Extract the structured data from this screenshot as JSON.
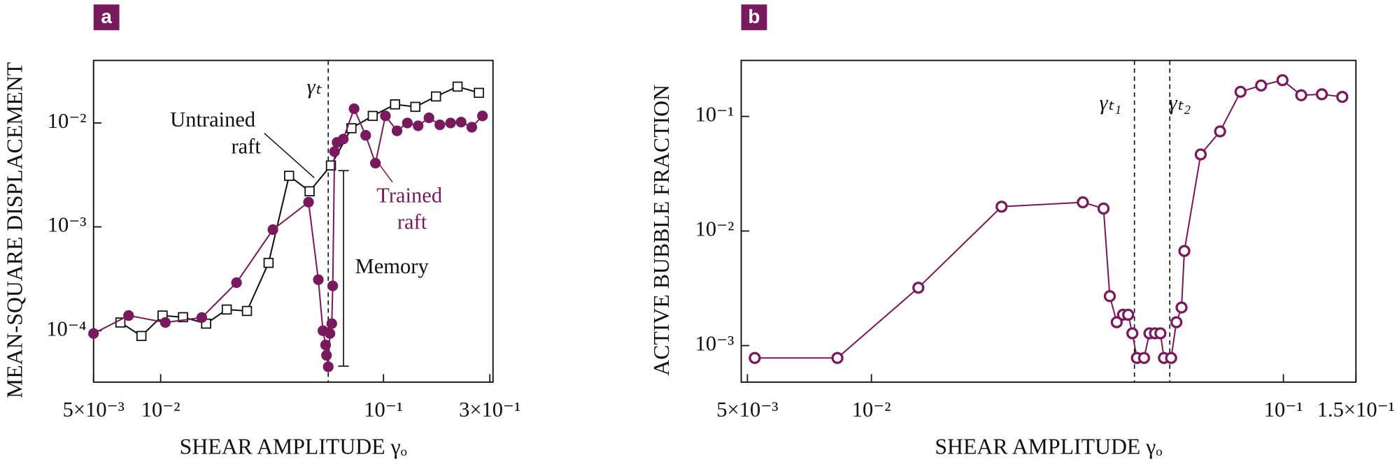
{
  "chart_data": [
    {
      "type": "line",
      "panel_label": "a",
      "xlabel": "SHEAR AMPLITUDE γₒ",
      "ylabel": "MEAN-SQUARE DISPLACEMENT",
      "xscale": "log",
      "yscale": "log",
      "xlim": [
        0.005,
        0.31
      ],
      "ylim": [
        3.2e-05,
        0.04
      ],
      "xticks": [
        {
          "value": 0.005,
          "label": "5×10⁻³"
        },
        {
          "value": 0.01,
          "label": "10⁻²"
        },
        {
          "value": 0.1,
          "label": "10⁻¹"
        },
        {
          "value": 0.3,
          "label": "3×10⁻¹"
        }
      ],
      "yticks": [
        {
          "value": 0.0001,
          "label": "10⁻⁴"
        },
        {
          "value": 0.001,
          "label": "10⁻³"
        },
        {
          "value": 0.01,
          "label": "10⁻²"
        }
      ],
      "vlines": [
        {
          "value": 0.0565,
          "label": "γₜ"
        }
      ],
      "annotation": "Memory",
      "series": [
        {
          "name": "Untrained raft",
          "color": "#111111",
          "marker": "square",
          "filled": false,
          "x": [
            0.0066,
            0.0082,
            0.0102,
            0.0126,
            0.016,
            0.0198,
            0.0244,
            0.0305,
            0.0377,
            0.0466,
            0.0581,
            0.0718,
            0.0895,
            0.1127,
            0.139,
            0.172,
            0.215,
            0.268
          ],
          "values": [
            0.00012,
            8.9e-05,
            0.00014,
            0.000135,
            0.000117,
            0.00016,
            0.000155,
            0.00045,
            0.0031,
            0.0022,
            0.0039,
            0.0089,
            0.0117,
            0.0151,
            0.0143,
            0.018,
            0.0224,
            0.0195
          ]
        },
        {
          "name": "Trained raft",
          "color": "#7a1a5e",
          "marker": "circle",
          "filled": true,
          "x": [
            0.005,
            0.00718,
            0.0105,
            0.0153,
            0.0219,
            0.0319,
            0.0461,
            0.051,
            0.0535,
            0.055,
            0.0555,
            0.0565,
            0.0575,
            0.0586,
            0.0592,
            0.0603,
            0.0619,
            0.066,
            0.0738,
            0.0832,
            0.092,
            0.102,
            0.115,
            0.128,
            0.143,
            0.16,
            0.179,
            0.2,
            0.223,
            0.249,
            0.278
          ],
          "values": [
            9.4e-05,
            0.00014,
            0.00012,
            0.000134,
            0.00029,
            0.00094,
            0.00173,
            0.00031,
            0.0001,
            7.3e-05,
            5.8e-05,
            4.5e-05,
            9.4e-05,
            0.000117,
            0.00027,
            0.0053,
            0.0065,
            0.007,
            0.0137,
            0.0076,
            0.0041,
            0.0117,
            0.0084,
            0.01,
            0.0094,
            0.0112,
            0.0096,
            0.01,
            0.0102,
            0.0091,
            0.0117
          ]
        }
      ]
    },
    {
      "type": "line",
      "panel_label": "b",
      "xlabel": "SHEAR AMPLITUDE γₒ",
      "ylabel": "ACTIVE BUBBLE FRACTION",
      "xscale": "log",
      "yscale": "log",
      "xlim": [
        0.00483,
        0.15
      ],
      "ylim": [
        0.00048,
        0.308
      ],
      "xticks": [
        {
          "value": 0.005,
          "label": "5×10⁻³"
        },
        {
          "value": 0.01,
          "label": "10⁻²"
        },
        {
          "value": 0.1,
          "label": "10⁻¹"
        },
        {
          "value": 0.15,
          "label": "1.5×10⁻¹"
        }
      ],
      "yticks": [
        {
          "value": 0.001,
          "label": "10⁻³"
        },
        {
          "value": 0.01,
          "label": "10⁻²"
        },
        {
          "value": 0.1,
          "label": "10⁻¹"
        }
      ],
      "vlines": [
        {
          "value": 0.0435,
          "label": "γₜ₁"
        },
        {
          "value": 0.053,
          "label": "γₜ₂"
        }
      ],
      "series": [
        {
          "color": "#7a1a5e",
          "marker": "circle",
          "filled": false,
          "x": [
            0.00521,
            0.00827,
            0.013,
            0.0207,
            0.0326,
            0.0366,
            0.0379,
            0.0394,
            0.0408,
            0.042,
            0.043,
            0.0441,
            0.0459,
            0.0473,
            0.0488,
            0.0503,
            0.0513,
            0.0534,
            0.055,
            0.0566,
            0.0575,
            0.063,
            0.0702,
            0.0787,
            0.0883,
            0.0995,
            0.1105,
            0.124,
            0.139
          ],
          "values": [
            0.00078,
            0.00078,
            0.0032,
            0.0163,
            0.0178,
            0.0157,
            0.0027,
            0.0016,
            0.00186,
            0.00186,
            0.00128,
            0.00078,
            0.00078,
            0.00128,
            0.00128,
            0.00128,
            0.00078,
            0.00078,
            0.0016,
            0.00215,
            0.0067,
            0.0466,
            0.074,
            0.164,
            0.186,
            0.207,
            0.153,
            0.156,
            0.148
          ]
        }
      ]
    }
  ]
}
